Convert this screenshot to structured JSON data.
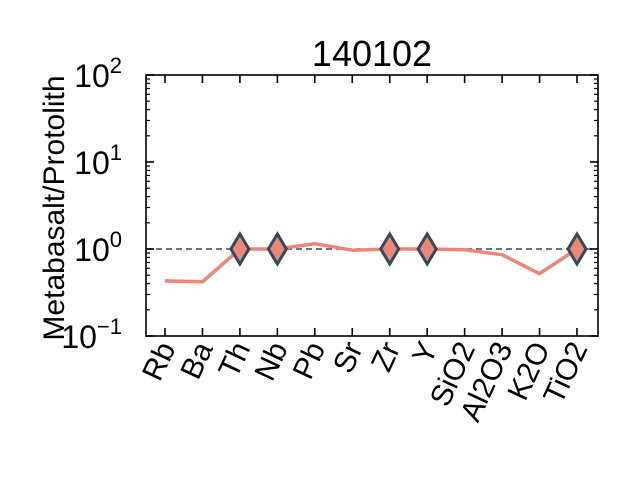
{
  "chart_data": {
    "type": "line",
    "title": "140102",
    "xlabel": "",
    "ylabel": "Metabasalt/Protolith",
    "yscale": "log",
    "ylim": [
      0.1,
      100
    ],
    "y_ticks": [
      {
        "value": 0.1,
        "base": "10",
        "exp": "−1"
      },
      {
        "value": 1,
        "base": "10",
        "exp": "0"
      },
      {
        "value": 10,
        "base": "10",
        "exp": "1"
      },
      {
        "value": 100,
        "base": "10",
        "exp": "2"
      }
    ],
    "categories": [
      "Rb",
      "Ba",
      "Th",
      "Nb",
      "Pb",
      "Sr",
      "Zr",
      "Y",
      "SiO2",
      "Al2O3",
      "K2O",
      "TiO2"
    ],
    "series": [
      {
        "values": [
          0.43,
          0.42,
          1.0,
          1.0,
          1.15,
          0.97,
          1.0,
          1.0,
          0.98,
          0.86,
          0.52,
          1.0
        ]
      }
    ],
    "markers_at": [
      "Th",
      "Nb",
      "Zr",
      "Y",
      "TiO2"
    ],
    "reference_line": {
      "y": 1,
      "style": "dashed"
    },
    "grid": false,
    "legend": "none",
    "colors": {
      "line": "#ec8677",
      "marker_fill": "#ec8677",
      "marker_edge": "#34495e",
      "reference": "#34495e",
      "axes": "#000000"
    }
  }
}
